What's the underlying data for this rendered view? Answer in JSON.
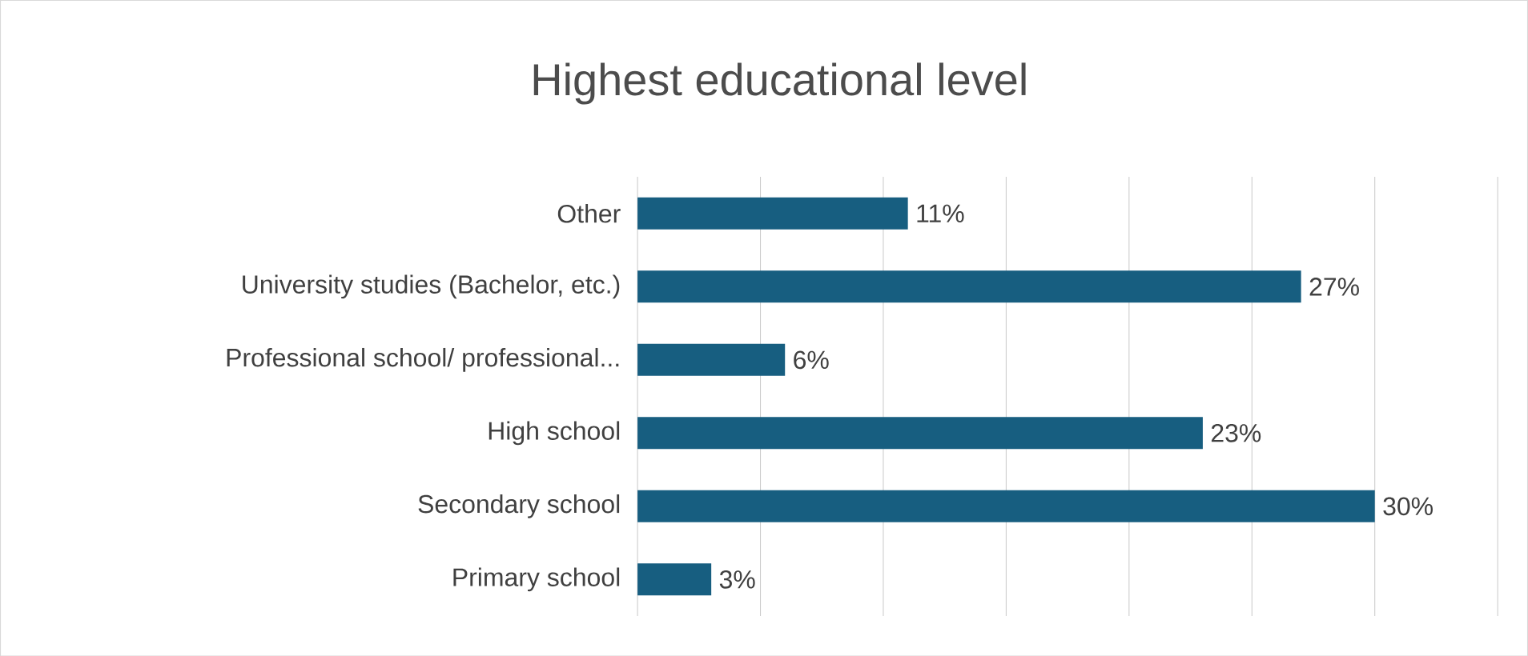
{
  "chart_data": {
    "type": "bar",
    "orientation": "horizontal",
    "title": "Highest educational level",
    "categories": [
      "Other",
      "University studies (Bachelor, etc.)",
      "Professional school/ professional...",
      "High school",
      "Secondary school",
      "Primary school"
    ],
    "values": [
      11,
      27,
      6,
      23,
      30,
      3
    ],
    "value_labels": [
      "11%",
      "27%",
      "6%",
      "23%",
      "30%",
      "3%"
    ],
    "color": "#175e80",
    "xlim": [
      0,
      35
    ],
    "xticks": [
      {
        "value": 0,
        "label": null
      },
      {
        "value": 5,
        "label": null
      },
      {
        "value": 10,
        "label": null
      },
      {
        "value": 15,
        "label": null
      },
      {
        "value": 20,
        "label": null
      },
      {
        "value": 25,
        "label": null
      },
      {
        "value": 30,
        "label": null
      },
      {
        "value": 35,
        "label": null
      }
    ],
    "grid": "x",
    "tick_labels": "y"
  }
}
